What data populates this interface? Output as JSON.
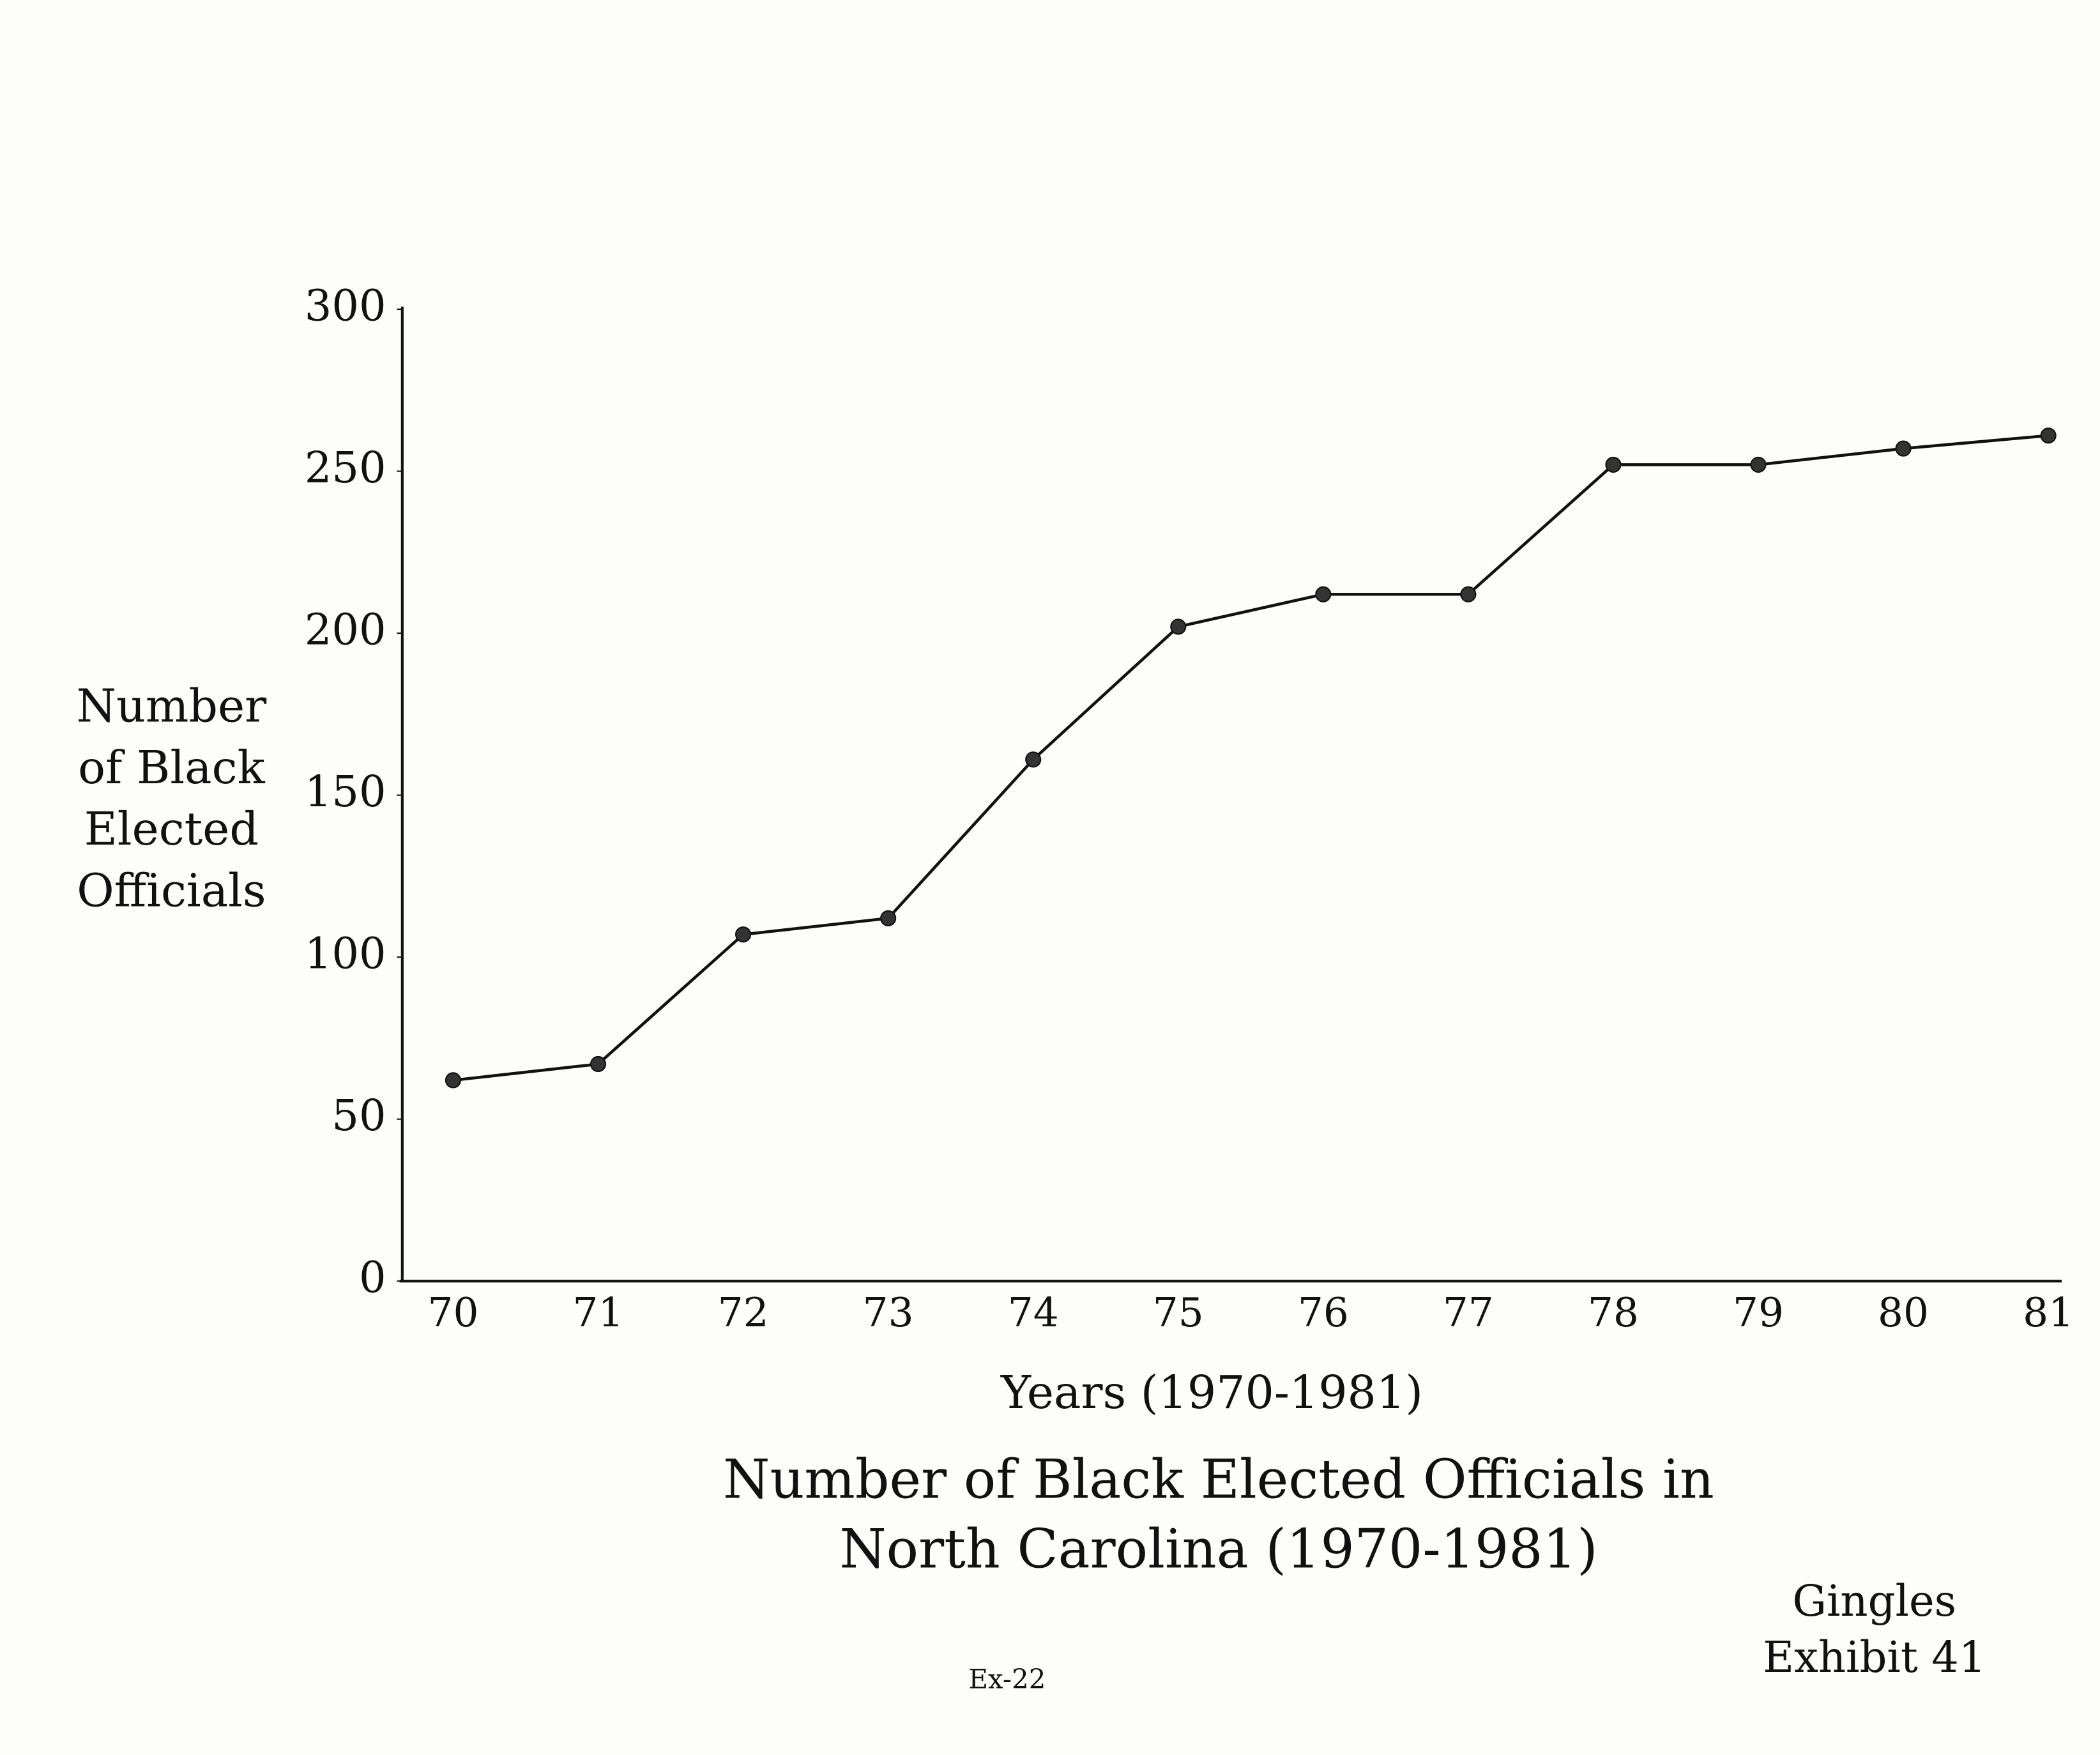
{
  "chart_data": {
    "type": "line",
    "title": "Number of Black Elected Officials in North Carolina (1970-1981)",
    "xlabel": "Years (1970-1981)",
    "ylabel": "Number of Black Elected Officials",
    "categories": [
      "70",
      "71",
      "72",
      "73",
      "74",
      "75",
      "76",
      "77",
      "78",
      "79",
      "80",
      "81"
    ],
    "values": [
      62,
      67,
      107,
      112,
      161,
      202,
      212,
      212,
      252,
      252,
      257,
      261
    ],
    "color": "#111111",
    "ylim": [
      0,
      300
    ],
    "yticks": [
      0,
      50,
      100,
      150,
      200,
      250,
      300
    ],
    "grid": false,
    "annotations": [
      "Gingles Exhibit 41",
      "Ex-22"
    ]
  }
}
